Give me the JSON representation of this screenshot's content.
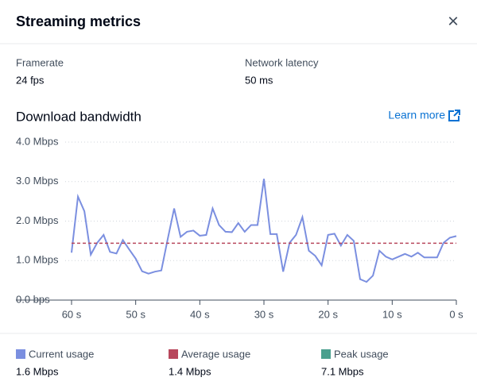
{
  "header": {
    "title": "Streaming metrics",
    "close": "×"
  },
  "metrics": [
    {
      "label": "Framerate",
      "value": "24 fps"
    },
    {
      "label": "Network latency",
      "value": "50 ms"
    }
  ],
  "learn_more": "Learn more",
  "chart_data": {
    "type": "line",
    "title": "Download bandwidth",
    "x": [
      60,
      59,
      58,
      57,
      56,
      55,
      54,
      53,
      52,
      51,
      50,
      49,
      48,
      47,
      46,
      45,
      44,
      43,
      42,
      41,
      40,
      39,
      38,
      37,
      36,
      35,
      34,
      33,
      32,
      31,
      30,
      29,
      28,
      27,
      26,
      25,
      24,
      23,
      22,
      21,
      20,
      19,
      18,
      17,
      16,
      15,
      14,
      13,
      12,
      11,
      10,
      9,
      8,
      7,
      6,
      5,
      4,
      3,
      2,
      1,
      0
    ],
    "xlim": [
      60,
      0
    ],
    "xticks": [
      {
        "value": 60,
        "label": "60 s"
      },
      {
        "value": 50,
        "label": "50 s"
      },
      {
        "value": 40,
        "label": "40 s"
      },
      {
        "value": 30,
        "label": "30 s"
      },
      {
        "value": 20,
        "label": "20 s"
      },
      {
        "value": 10,
        "label": "10 s"
      },
      {
        "value": 0,
        "label": "0 s"
      }
    ],
    "ylim": [
      0,
      4
    ],
    "yticks": [
      {
        "value": 0,
        "label": "0.0 bps"
      },
      {
        "value": 1,
        "label": "1.0 Mbps"
      },
      {
        "value": 2,
        "label": "2.0 Mbps"
      },
      {
        "value": 3,
        "label": "3.0 Mbps"
      },
      {
        "value": 4,
        "label": "4.0 Mbps"
      }
    ],
    "grid": true,
    "series": [
      {
        "name": "Current usage",
        "color": "#7b8fe0",
        "summary": "1.6 Mbps",
        "values": [
          1.2,
          2.62,
          2.25,
          1.15,
          1.45,
          1.65,
          1.22,
          1.18,
          1.52,
          1.28,
          1.05,
          0.73,
          0.67,
          0.72,
          0.75,
          1.55,
          2.32,
          1.6,
          1.73,
          1.76,
          1.63,
          1.65,
          2.32,
          1.9,
          1.73,
          1.72,
          1.95,
          1.73,
          1.9,
          1.9,
          3.07,
          1.67,
          1.67,
          0.72,
          1.45,
          1.65,
          2.1,
          1.25,
          1.12,
          0.88,
          1.65,
          1.68,
          1.38,
          1.65,
          1.5,
          0.53,
          0.46,
          0.62,
          1.25,
          1.1,
          1.03,
          1.1,
          1.17,
          1.1,
          1.2,
          1.08,
          1.08,
          1.08,
          1.45,
          1.58,
          1.62
        ]
      },
      {
        "name": "Average usage",
        "color": "#b8475c",
        "summary": "1.4 Mbps",
        "threshold": 1.44
      },
      {
        "name": "Peak usage",
        "color": "#4aa08e",
        "summary": "7.1 Mbps"
      }
    ]
  }
}
